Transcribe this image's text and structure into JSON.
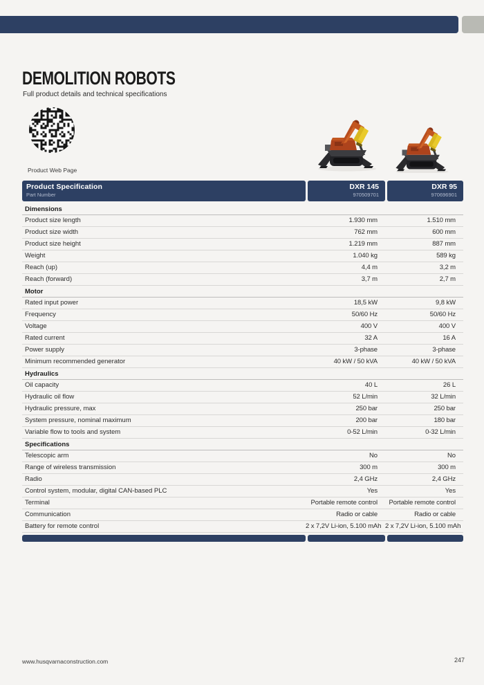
{
  "page": {
    "title": "DEMOLITION ROBOTS",
    "subtitle": "Full product details and technical specifications",
    "qr_label": "Product Web Page",
    "footer_url": "www.husqvarnaconstruction.com",
    "page_number": "247"
  },
  "colors": {
    "navy": "#2d4063",
    "gray_tab": "#b9bab4",
    "background": "#f5f4f2"
  },
  "table": {
    "header": {
      "title": "Product Specification",
      "subtitle": "Part Number",
      "columns": [
        {
          "model": "DXR 145",
          "part_number": "970509701"
        },
        {
          "model": "DXR 95",
          "part_number": "970696901"
        }
      ]
    },
    "sections": [
      {
        "name": "Dimensions",
        "rows": [
          {
            "label": "Product size length",
            "values": [
              "1.930 mm",
              "1.510 mm"
            ]
          },
          {
            "label": "Product size width",
            "values": [
              "762 mm",
              "600 mm"
            ]
          },
          {
            "label": "Product size height",
            "values": [
              "1.219 mm",
              "887 mm"
            ]
          },
          {
            "label": "Weight",
            "values": [
              "1.040 kg",
              "589 kg"
            ]
          },
          {
            "label": "Reach (up)",
            "values": [
              "4,4 m",
              "3,2 m"
            ]
          },
          {
            "label": "Reach (forward)",
            "values": [
              "3,7 m",
              "2,7 m"
            ]
          }
        ]
      },
      {
        "name": "Motor",
        "rows": [
          {
            "label": "Rated input power",
            "values": [
              "18,5 kW",
              "9,8 kW"
            ]
          },
          {
            "label": "Frequency",
            "values": [
              "50/60 Hz",
              "50/60 Hz"
            ]
          },
          {
            "label": "Voltage",
            "values": [
              "400 V",
              "400 V"
            ]
          },
          {
            "label": "Rated current",
            "values": [
              "32 A",
              "16 A"
            ]
          },
          {
            "label": "Power supply",
            "values": [
              "3-phase",
              "3-phase"
            ]
          },
          {
            "label": "Minimum recommended generator",
            "values": [
              "40 kW / 50 kVA",
              "40 kW / 50 kVA"
            ]
          }
        ]
      },
      {
        "name": "Hydraulics",
        "rows": [
          {
            "label": "Oil capacity",
            "values": [
              "40 L",
              "26 L"
            ]
          },
          {
            "label": "Hydraulic oil flow",
            "values": [
              "52 L/min",
              "32 L/min"
            ]
          },
          {
            "label": "Hydraulic pressure, max",
            "values": [
              "250 bar",
              "250 bar"
            ]
          },
          {
            "label": "System pressure, nominal maximum",
            "values": [
              "200 bar",
              "180 bar"
            ]
          },
          {
            "label": "Variable flow to tools and system",
            "values": [
              "0-52 L/min",
              "0-32 L/min"
            ]
          }
        ]
      },
      {
        "name": "Specifications",
        "rows": [
          {
            "label": "Telescopic arm",
            "values": [
              "No",
              "No"
            ]
          },
          {
            "label": "Range of wireless transmission",
            "values": [
              "300 m",
              "300 m"
            ]
          },
          {
            "label": "Radio",
            "values": [
              "2,4 GHz",
              "2,4 GHz"
            ]
          },
          {
            "label": "Control system, modular, digital CAN-based PLC",
            "values": [
              "Yes",
              "Yes"
            ]
          },
          {
            "label": "Terminal",
            "values": [
              "Portable remote control",
              "Portable remote control"
            ]
          },
          {
            "label": "Communication",
            "values": [
              "Radio or cable",
              "Radio or cable"
            ]
          },
          {
            "label": "Battery for remote control",
            "values": [
              "2 x 7,2V Li-ion, 5.100 mAh",
              "2 x 7,2V Li-ion, 5.100 mAh"
            ]
          }
        ]
      }
    ]
  }
}
